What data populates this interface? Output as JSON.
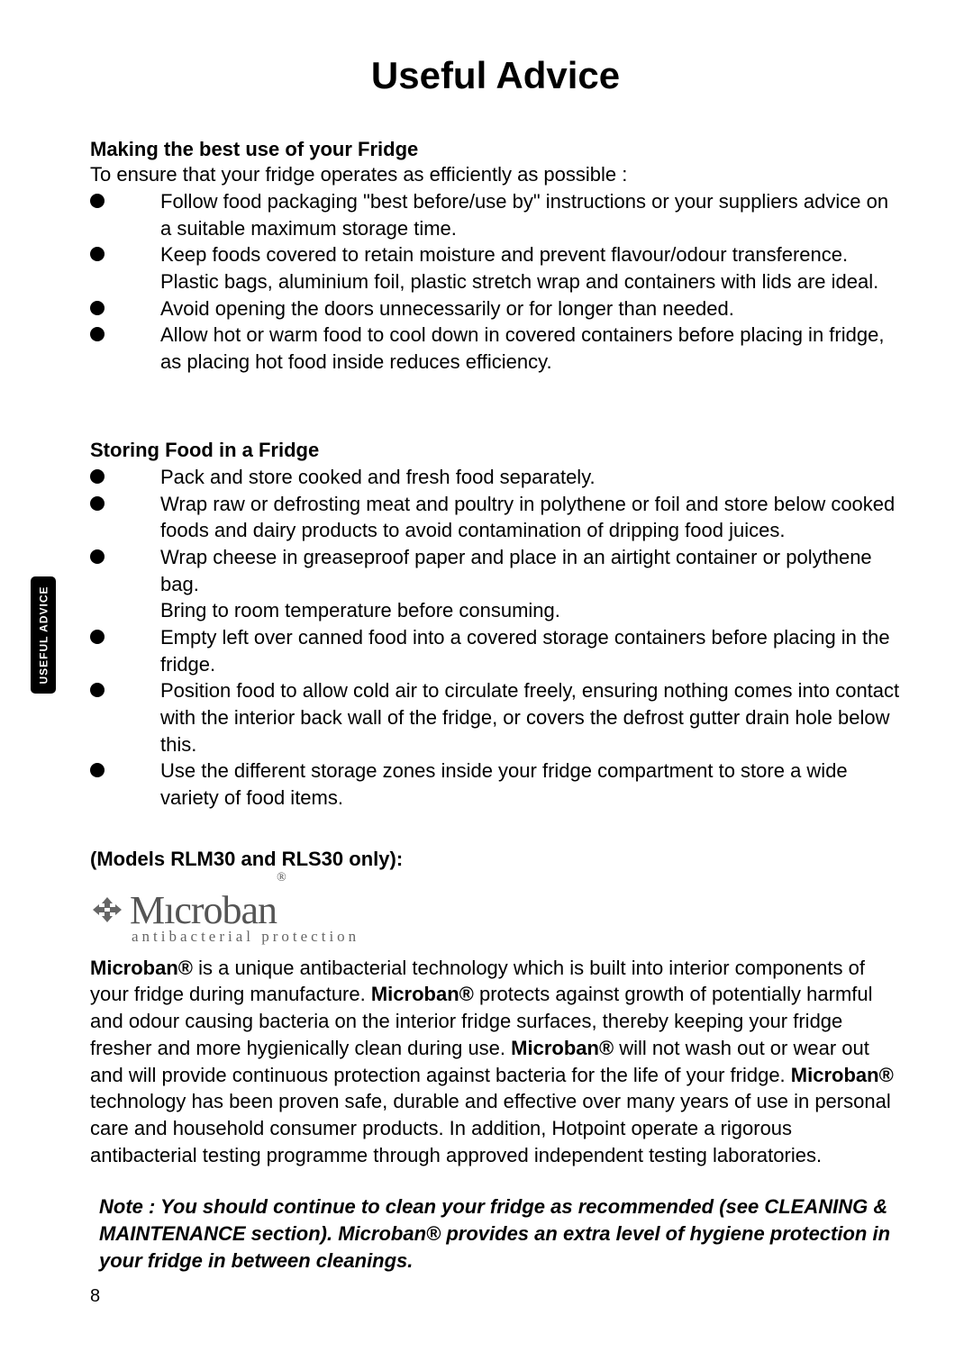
{
  "title": "Useful Advice",
  "side_tab": "USEFUL  ADVICE",
  "page_number": "8",
  "section1": {
    "heading": "Making the best use of your Fridge",
    "intro": "To ensure that your fridge operates as efficiently as possible :",
    "bullets": [
      "Follow food packaging \"best before/use by\" instructions or your suppliers advice on a suitable maximum storage time.",
      "Keep foods covered to retain moisture and prevent flavour/odour transference.  Plastic bags, aluminium foil, plastic stretch wrap and containers with lids are ideal.",
      "Avoid opening the doors unnecessarily or for longer than needed.",
      "Allow hot or warm food to cool down in covered containers before placing in fridge,  as placing hot food inside reduces efficiency."
    ]
  },
  "section2": {
    "heading": "Storing Food in a Fridge",
    "bullets": [
      "Pack and store cooked and fresh food separately.",
      "Wrap raw or defrosting meat and poultry in polythene or foil and store below cooked foods and dairy products to avoid contamination of dripping food juices.",
      "Wrap cheese in greaseproof paper and place in an airtight container or polythene bag.",
      "Empty left over canned food into a covered storage containers before placing in the fridge.",
      "Position food to allow cold air to circulate freely, ensuring nothing comes into contact with the interior back wall of the fridge, or covers the defrost gutter drain hole below this.",
      "Use the different storage zones inside your fridge compartment to store a wide variety of food items."
    ],
    "continuation_after_index": 2,
    "continuation_text": "Bring to room temperature before consuming."
  },
  "models_heading": "(Models RLM30 and RLS30 only):",
  "logo": {
    "name": "Mıcroban",
    "tagline": "antibacterial protection"
  },
  "microban_para": {
    "b1": "Microban®",
    "t1": " is a unique antibacterial technology which is built into interior components of your fridge during manufacture.  ",
    "b2": "Microban®",
    "t2": " protects against growth of potentially harmful and odour causing bacteria on the interior fridge surfaces, thereby keeping your fridge fresher and more hygienically clean during use.  ",
    "b3": "Microban®",
    "t3": " will not wash out or wear out and will provide continuous protection against bacteria for the life of your fridge.  ",
    "b4": "Microban®",
    "t4": " technology has been proven safe, durable and effective over many years of use in personal care and household consumer products.  In addition, Hotpoint operate a rigorous antibacterial testing programme through approved independent testing laboratories."
  },
  "note": "Note : You should continue to clean your fridge as recommended (see CLEANING & MAINTENANCE section).  Microban® provides an extra level of hygiene protection in your fridge in between cleanings."
}
